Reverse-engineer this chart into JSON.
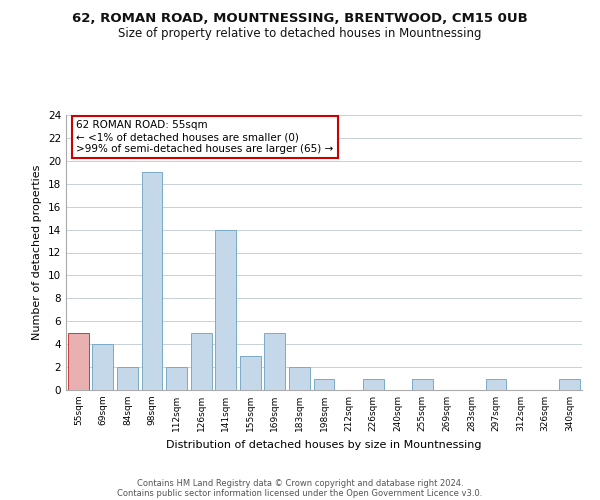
{
  "title": "62, ROMAN ROAD, MOUNTNESSING, BRENTWOOD, CM15 0UB",
  "subtitle": "Size of property relative to detached houses in Mountnessing",
  "xlabel": "Distribution of detached houses by size in Mountnessing",
  "ylabel": "Number of detached properties",
  "footnote1": "Contains HM Land Registry data © Crown copyright and database right 2024.",
  "footnote2": "Contains public sector information licensed under the Open Government Licence v3.0.",
  "bin_labels": [
    "55sqm",
    "69sqm",
    "84sqm",
    "98sqm",
    "112sqm",
    "126sqm",
    "141sqm",
    "155sqm",
    "169sqm",
    "183sqm",
    "198sqm",
    "212sqm",
    "226sqm",
    "240sqm",
    "255sqm",
    "269sqm",
    "283sqm",
    "297sqm",
    "312sqm",
    "326sqm",
    "340sqm"
  ],
  "bar_values": [
    5,
    4,
    2,
    19,
    2,
    5,
    14,
    3,
    5,
    2,
    1,
    0,
    1,
    0,
    1,
    0,
    0,
    1,
    0,
    0,
    1
  ],
  "bar_color_blue": "#c5d8ea",
  "bar_edge_blue": "#7aaac8",
  "bar_color_red": "#e8b0b0",
  "bar_edge_red": "#c04040",
  "red_bars_count": 1,
  "annotation_line1": "62 ROMAN ROAD: 55sqm",
  "annotation_line2": "← <1% of detached houses are smaller (0)",
  "annotation_line3": ">99% of semi-detached houses are larger (65) →",
  "annotation_box_facecolor": "#ffffff",
  "annotation_box_edgecolor": "#cc0000",
  "ylim": [
    0,
    24
  ],
  "yticks": [
    0,
    2,
    4,
    6,
    8,
    10,
    12,
    14,
    16,
    18,
    20,
    22,
    24
  ],
  "background_color": "#ffffff",
  "grid_color": "#c8d0d8"
}
